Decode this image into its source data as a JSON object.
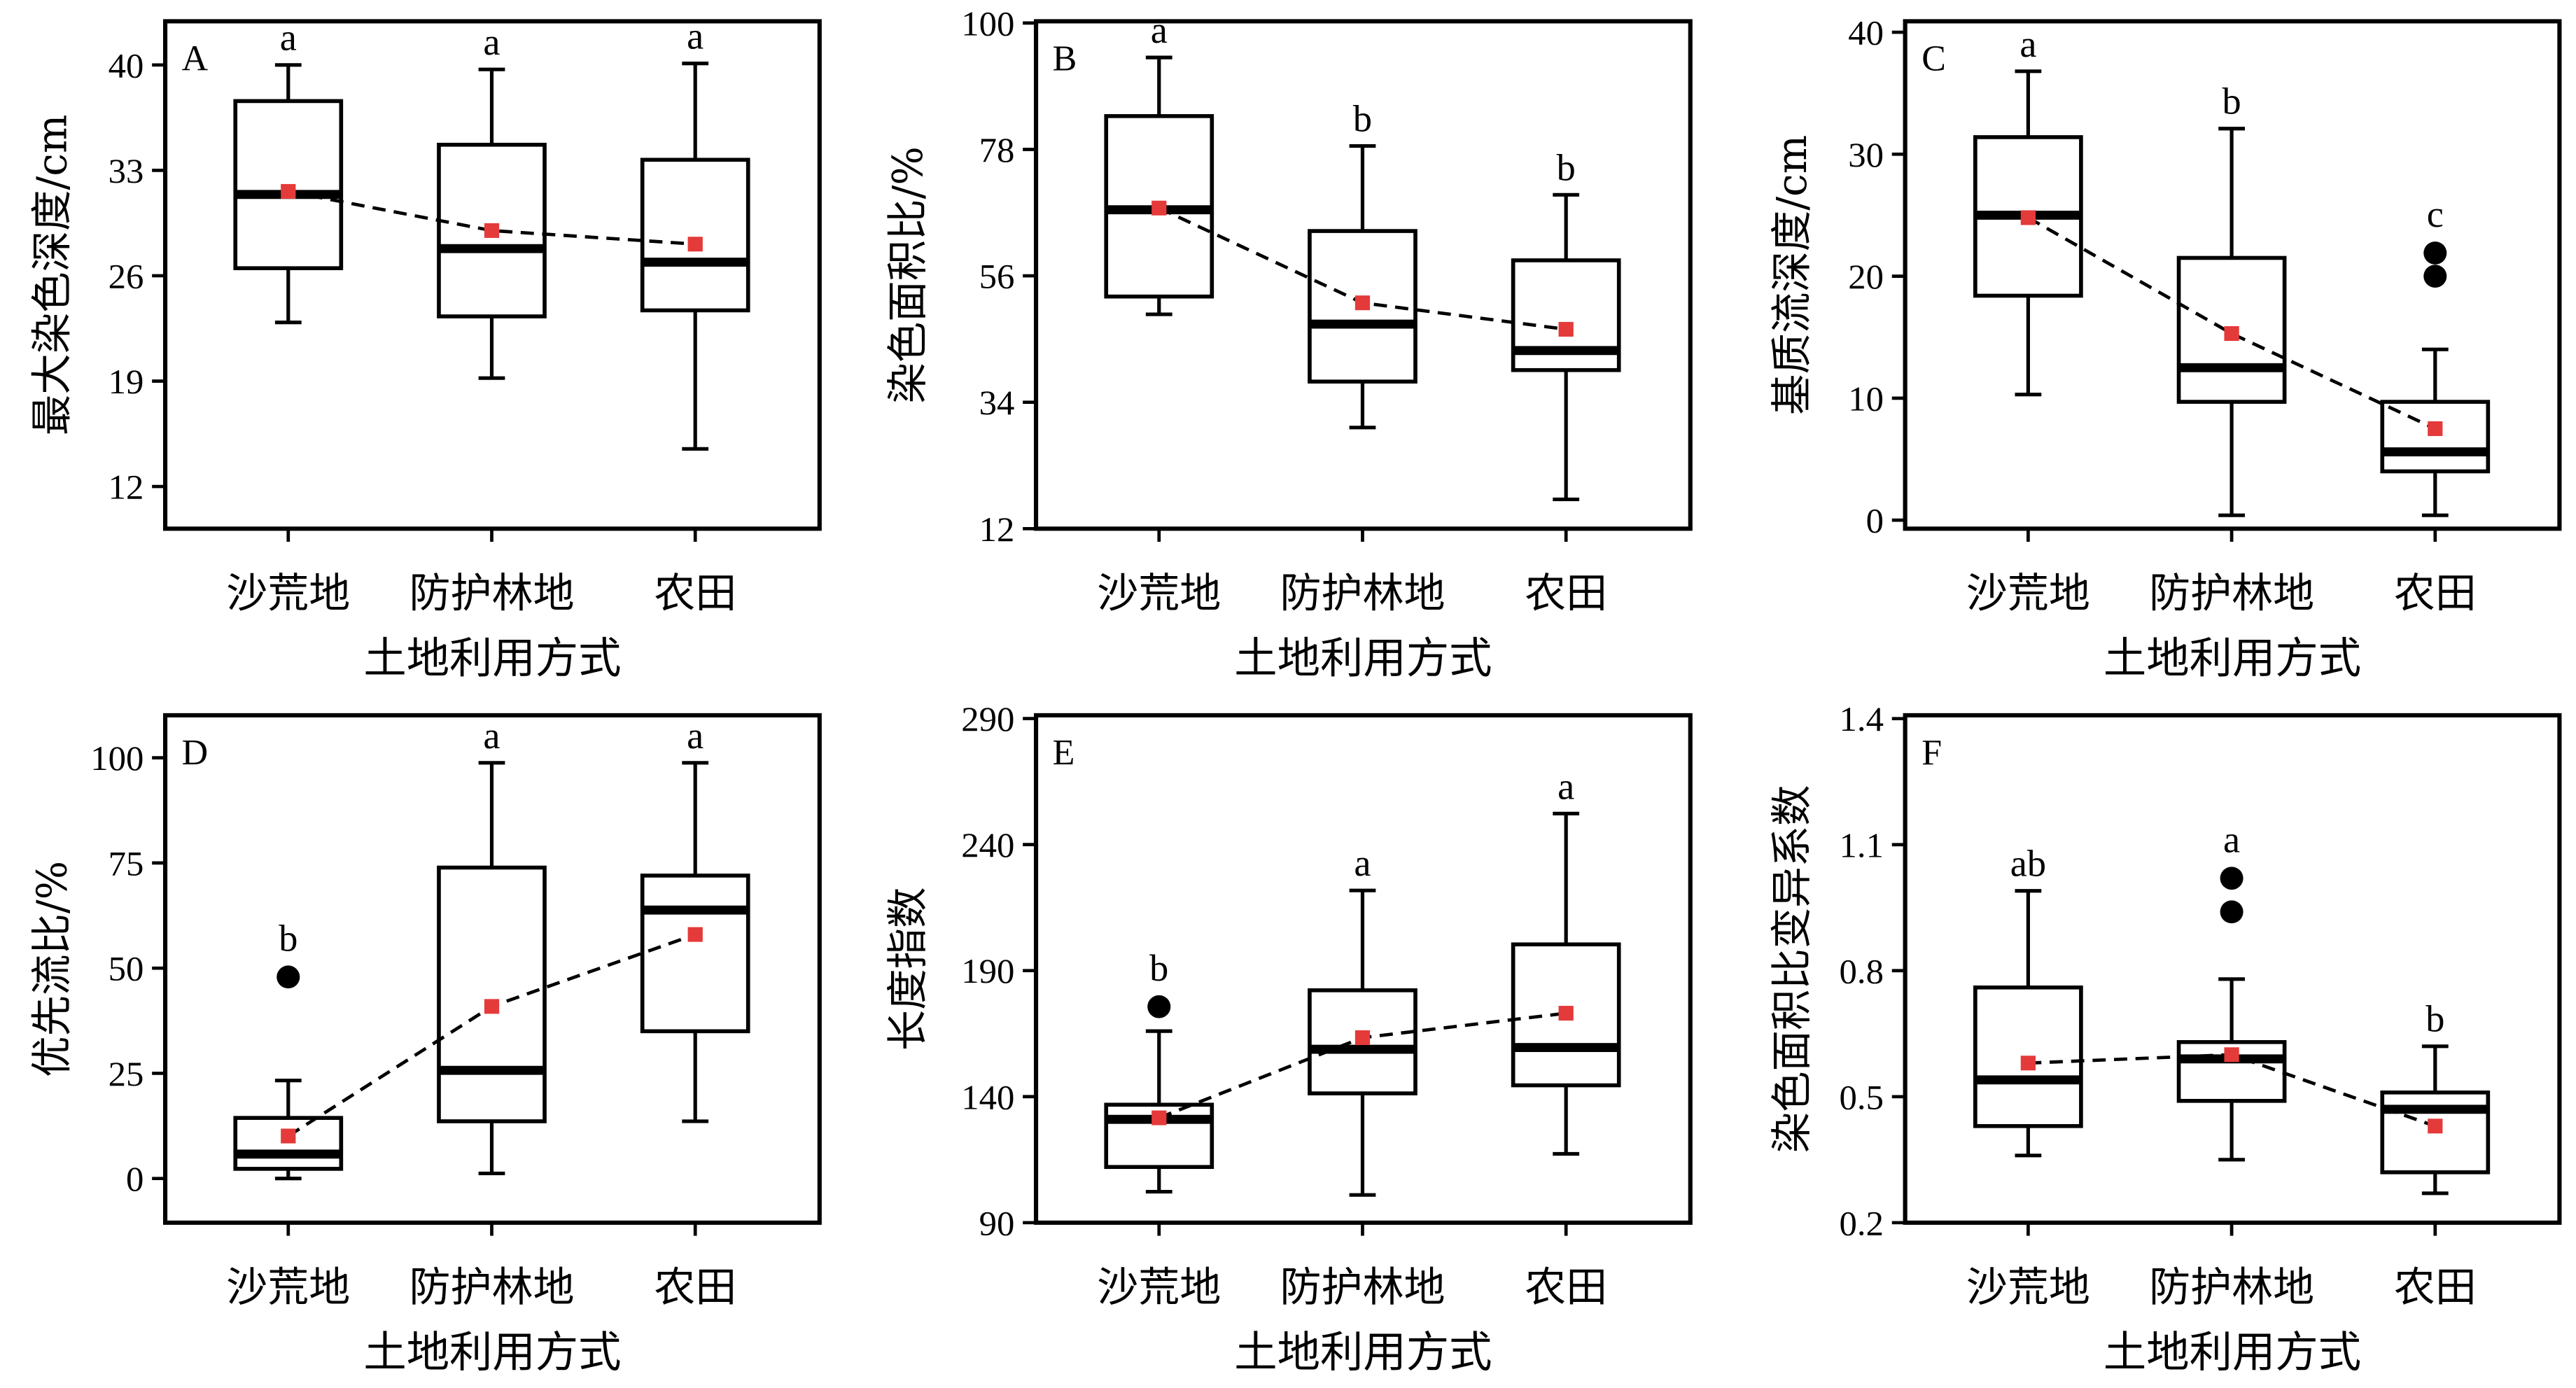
{
  "colors": {
    "mean_marker": "#e53a3a",
    "ink": "#000000",
    "background": "#ffffff"
  },
  "chart_data": [
    {
      "type": "box",
      "panel_label": "A",
      "xlabel": "土地利用方式",
      "ylabel": "最大染色深度/cm",
      "categories": [
        "沙荒地",
        "防护林地",
        "农田"
      ],
      "yticks": [
        "12",
        "19",
        "26",
        "33",
        "40"
      ],
      "ylim": [
        9.2,
        42.9
      ],
      "grid": false,
      "boxes": [
        {
          "whisker_low": 22.9,
          "q1": 26.5,
          "median": 31.4,
          "q3": 37.6,
          "whisker_high": 40.0,
          "mean": 31.6,
          "outliers": [],
          "letter": "a"
        },
        {
          "whisker_low": 19.2,
          "q1": 23.3,
          "median": 27.8,
          "q3": 34.7,
          "whisker_high": 39.7,
          "mean": 29.0,
          "outliers": [],
          "letter": "a"
        },
        {
          "whisker_low": 14.5,
          "q1": 23.7,
          "median": 26.9,
          "q3": 33.7,
          "whisker_high": 40.1,
          "mean": 28.1,
          "outliers": [],
          "letter": "a"
        }
      ]
    },
    {
      "type": "box",
      "panel_label": "B",
      "xlabel": "土地利用方式",
      "ylabel": "染色面积比/%",
      "categories": [
        "沙荒地",
        "防护林地",
        "农田"
      ],
      "yticks": [
        "12",
        "34",
        "56",
        "78",
        "100"
      ],
      "ylim": [
        12,
        100.3
      ],
      "grid": false,
      "boxes": [
        {
          "whisker_low": 49.3,
          "q1": 52.4,
          "median": 67.5,
          "q3": 83.8,
          "whisker_high": 94.0,
          "mean": 67.8,
          "outliers": [],
          "letter": "a"
        },
        {
          "whisker_low": 29.6,
          "q1": 37.6,
          "median": 47.6,
          "q3": 63.8,
          "whisker_high": 78.6,
          "mean": 51.3,
          "outliers": [],
          "letter": "b"
        },
        {
          "whisker_low": 17.1,
          "q1": 39.6,
          "median": 43.0,
          "q3": 58.7,
          "whisker_high": 70.1,
          "mean": 46.7,
          "outliers": [],
          "letter": "b"
        }
      ]
    },
    {
      "type": "box",
      "panel_label": "C",
      "xlabel": "土地利用方式",
      "ylabel": "基质流深度/cm",
      "categories": [
        "沙荒地",
        "防护林地",
        "农田"
      ],
      "yticks": [
        "0",
        "10",
        "20",
        "30",
        "40"
      ],
      "ylim": [
        -0.7,
        40.9
      ],
      "grid": false,
      "boxes": [
        {
          "whisker_low": 10.3,
          "q1": 18.4,
          "median": 25.0,
          "q3": 31.4,
          "whisker_high": 36.8,
          "mean": 24.8,
          "outliers": [],
          "letter": "a"
        },
        {
          "whisker_low": 0.4,
          "q1": 9.7,
          "median": 12.5,
          "q3": 21.5,
          "whisker_high": 32.1,
          "mean": 15.3,
          "outliers": [],
          "letter": "b"
        },
        {
          "whisker_low": 0.4,
          "q1": 4.0,
          "median": 5.6,
          "q3": 9.7,
          "whisker_high": 14.0,
          "mean": 7.5,
          "outliers": [
            20.0,
            21.9
          ],
          "letter": "c"
        }
      ]
    },
    {
      "type": "box",
      "panel_label": "D",
      "xlabel": "土地利用方式",
      "ylabel": "优先流比/%",
      "categories": [
        "沙荒地",
        "防护林地",
        "农田"
      ],
      "yticks": [
        "0",
        "25",
        "50",
        "75",
        "100"
      ],
      "ylim": [
        -10.5,
        110.1
      ],
      "grid": false,
      "boxes": [
        {
          "whisker_low": 0.0,
          "q1": 2.3,
          "median": 5.8,
          "q3": 14.4,
          "whisker_high": 23.3,
          "mean": 10.1,
          "outliers": [
            47.9
          ],
          "letter": "b"
        },
        {
          "whisker_low": 1.2,
          "q1": 13.6,
          "median": 25.7,
          "q3": 73.9,
          "whisker_high": 98.8,
          "mean": 40.9,
          "outliers": [],
          "letter": "a"
        },
        {
          "whisker_low": 13.6,
          "q1": 35.0,
          "median": 63.8,
          "q3": 72.0,
          "whisker_high": 98.8,
          "mean": 58.0,
          "outliers": [],
          "letter": "a"
        }
      ]
    },
    {
      "type": "box",
      "panel_label": "E",
      "xlabel": "土地利用方式",
      "ylabel": "长度指数",
      "categories": [
        "沙荒地",
        "防护林地",
        "农田"
      ],
      "yticks": [
        "90",
        "140",
        "190",
        "240",
        "290"
      ],
      "ylim": [
        90,
        291.3
      ],
      "grid": false,
      "boxes": [
        {
          "whisker_low": 102.3,
          "q1": 112.1,
          "median": 131.0,
          "q3": 136.8,
          "whisker_high": 166.0,
          "mean": 131.6,
          "outliers": [
            175.7
          ],
          "letter": "b"
        },
        {
          "whisker_low": 101.0,
          "q1": 141.3,
          "median": 158.8,
          "q3": 182.2,
          "whisker_high": 221.8,
          "mean": 163.4,
          "outliers": [],
          "letter": "a"
        },
        {
          "whisker_low": 117.3,
          "q1": 144.5,
          "median": 159.5,
          "q3": 200.4,
          "whisker_high": 252.3,
          "mean": 173.1,
          "outliers": [],
          "letter": "a"
        }
      ]
    },
    {
      "type": "box",
      "panel_label": "F",
      "xlabel": "土地利用方式",
      "ylabel": "染色面积比变异系数",
      "categories": [
        "沙荒地",
        "防护林地",
        "农田"
      ],
      "yticks": [
        "0.2",
        "0.5",
        "0.8",
        "1.1",
        "1.4"
      ],
      "ylim": [
        0.2,
        1.408
      ],
      "grid": false,
      "boxes": [
        {
          "whisker_low": 0.36,
          "q1": 0.43,
          "median": 0.54,
          "q3": 0.76,
          "whisker_high": 0.99,
          "mean": 0.58,
          "outliers": [],
          "letter": "ab"
        },
        {
          "whisker_low": 0.35,
          "q1": 0.49,
          "median": 0.59,
          "q3": 0.63,
          "whisker_high": 0.78,
          "mean": 0.6,
          "outliers": [
            0.94,
            1.02
          ],
          "letter": "a"
        },
        {
          "whisker_low": 0.27,
          "q1": 0.32,
          "median": 0.47,
          "q3": 0.51,
          "whisker_high": 0.62,
          "mean": 0.43,
          "outliers": [],
          "letter": "b"
        }
      ]
    }
  ]
}
